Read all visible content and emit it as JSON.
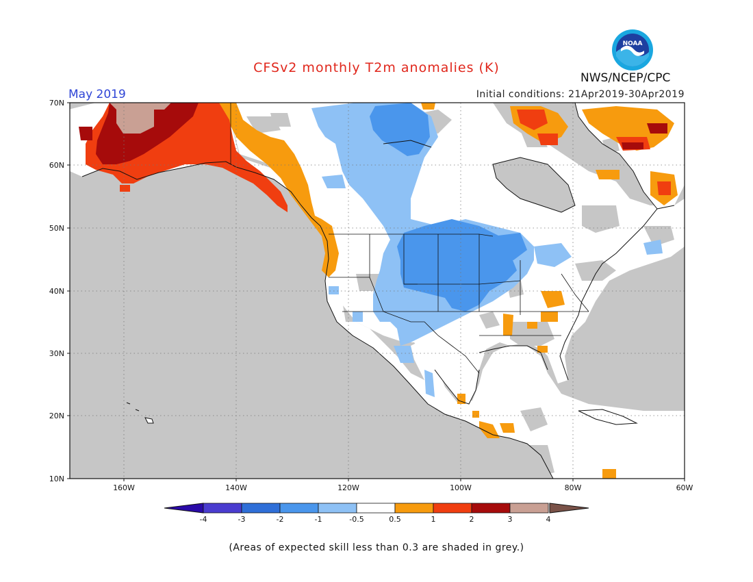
{
  "header": {
    "title": "CFSv2 monthly T2m anomalies (K)",
    "month": "May 2019",
    "initial_conditions": "Initial conditions: 21Apr2019-30Apr2019",
    "agency": "NWS/NCEP/CPC",
    "logo_text": "NOAA"
  },
  "map": {
    "projection": "lat-lon",
    "lat_range": [
      10,
      70
    ],
    "lon_range": [
      -170,
      -60
    ],
    "lat_labels": [
      "70N",
      "60N",
      "50N",
      "40N",
      "30N",
      "20N",
      "10N"
    ],
    "lon_labels": [
      "160W",
      "140W",
      "120W",
      "100W",
      "80W",
      "60W"
    ],
    "ocean_color": "#c6c6c6",
    "land_color": "#ffffff"
  },
  "colorbar": {
    "labels": [
      "-4",
      "-3",
      "-2",
      "-1",
      "-0.5",
      "0.5",
      "1",
      "2",
      "3",
      "4"
    ],
    "colors": [
      "#2a0aa8",
      "#4a3ccf",
      "#2f6fd8",
      "#4a96ec",
      "#8ec1f5",
      "#ffffff",
      "#f79b0e",
      "#f03e10",
      "#a60b0b",
      "#c9a094",
      "#7a5248"
    ]
  },
  "footnote": "(Areas of expected skill less than 0.3 are shaded in grey.)"
}
